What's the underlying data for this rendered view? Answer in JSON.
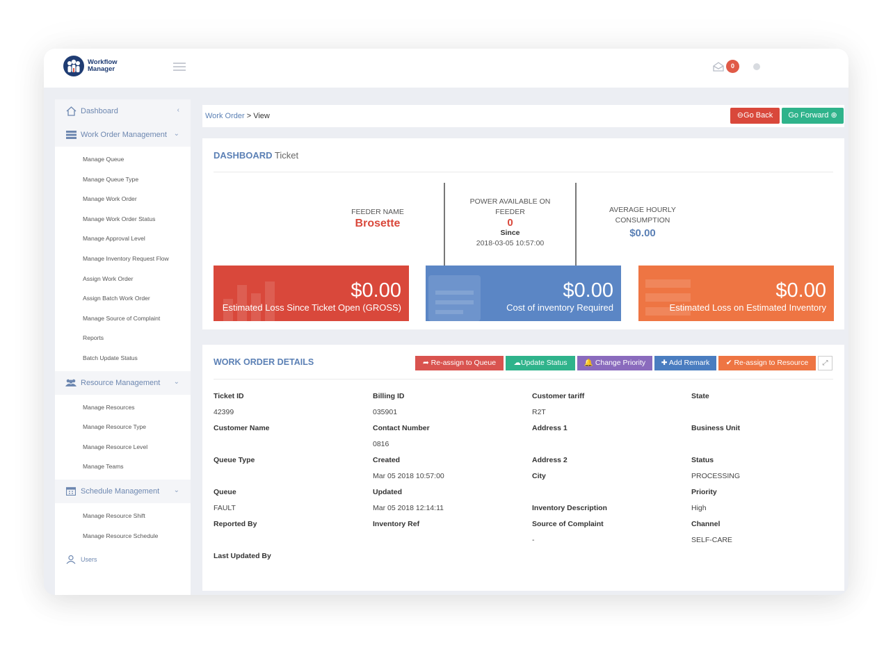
{
  "app": {
    "logo_line1": "Workflow",
    "logo_line2": "Manager",
    "mail_count": "0"
  },
  "sidebar": {
    "dashboard": "Dashboard",
    "work_order_management": {
      "title": "Work Order Management",
      "items": [
        "Manage Queue",
        "Manage Queue Type",
        "Manage Work Order",
        "Manage Work Order Status",
        "Manage Approval Level",
        "Manage Inventory Request Flow",
        "Assign Work Order",
        "Assign Batch Work Order",
        "Manage Source of Complaint",
        "Reports",
        "Batch Update Status"
      ]
    },
    "resource_management": {
      "title": "Resource Management",
      "items": [
        "Manage Resources",
        "Manage Resource Type",
        "Manage Resource Level",
        "Manage Teams"
      ]
    },
    "schedule_management": {
      "title": "Schedule Management",
      "items": [
        "Manage Resource Shift",
        "Manage Resource Schedule"
      ]
    },
    "users": "Users"
  },
  "breadcrumb": {
    "link": "Work Order",
    "separator": " > ",
    "current": "View"
  },
  "actions": {
    "go_back": "Go Back",
    "go_forward": "Go Forward"
  },
  "dashboard": {
    "title_bold": "DASHBOARD",
    "title_rest": "Ticket",
    "feeder_label": "FEEDER NAME",
    "feeder_value": "Brosette",
    "power_label": "POWER AVAILABLE ON FEEDER",
    "power_value": "0",
    "since_label": "Since",
    "since_value": "2018-03-05 10:57:00",
    "avg_label": "AVERAGE HOURLY CONSUMPTION",
    "avg_value": "$0.00",
    "cards": [
      {
        "value": "$0.00",
        "label": "Estimated Loss Since Ticket Open (GROSS)",
        "color": "#d9483b"
      },
      {
        "value": "$0.00",
        "label": "Cost of inventory Required",
        "color": "#5b86c5"
      },
      {
        "value": "$0.00",
        "label": "Estimated Loss on Estimated Inventory",
        "color": "#ee7543"
      }
    ]
  },
  "work_order": {
    "title": "WORK ORDER DETAILS",
    "buttons": {
      "reassign_queue": "Re-assign to Queue",
      "update_status": "Update Status",
      "change_priority": "Change Priority",
      "add_remark": "Add Remark",
      "reassign_resource": "Re-assign to Resource"
    },
    "fields": {
      "ticket_id": {
        "label": "Ticket ID",
        "value": "42399"
      },
      "billing_id": {
        "label": "Billing ID",
        "value": "035901"
      },
      "customer_tariff": {
        "label": "Customer tariff",
        "value": "R2T"
      },
      "state": {
        "label": "State",
        "value": ""
      },
      "customer_name": {
        "label": "Customer Name",
        "value": ""
      },
      "contact_number": {
        "label": "Contact Number",
        "value": "0816"
      },
      "address1": {
        "label": "Address 1",
        "value": ""
      },
      "business_unit": {
        "label": "Business Unit",
        "value": ""
      },
      "queue_type": {
        "label": "Queue Type",
        "value": ""
      },
      "created": {
        "label": "Created",
        "value": "Mar 05 2018 10:57:00"
      },
      "address2": {
        "label": "Address 2",
        "value": ""
      },
      "city": {
        "label": "City",
        "value": ""
      },
      "status": {
        "label": "Status",
        "value": "PROCESSING"
      },
      "queue": {
        "label": "Queue",
        "value": "FAULT"
      },
      "updated": {
        "label": "Updated",
        "value": "Mar 05 2018 12:14:11"
      },
      "inventory_description": {
        "label": "Inventory Description",
        "value": ""
      },
      "priority": {
        "label": "Priority",
        "value": "High"
      },
      "reported_by": {
        "label": "Reported By",
        "value": ""
      },
      "inventory_ref": {
        "label": "Inventory Ref",
        "value": ""
      },
      "source_of_complaint": {
        "label": "Source of Complaint",
        "value": "-"
      },
      "channel": {
        "label": "Channel",
        "value": "SELF-CARE"
      },
      "last_updated_by": {
        "label": "Last Updated By",
        "value": ""
      }
    }
  }
}
